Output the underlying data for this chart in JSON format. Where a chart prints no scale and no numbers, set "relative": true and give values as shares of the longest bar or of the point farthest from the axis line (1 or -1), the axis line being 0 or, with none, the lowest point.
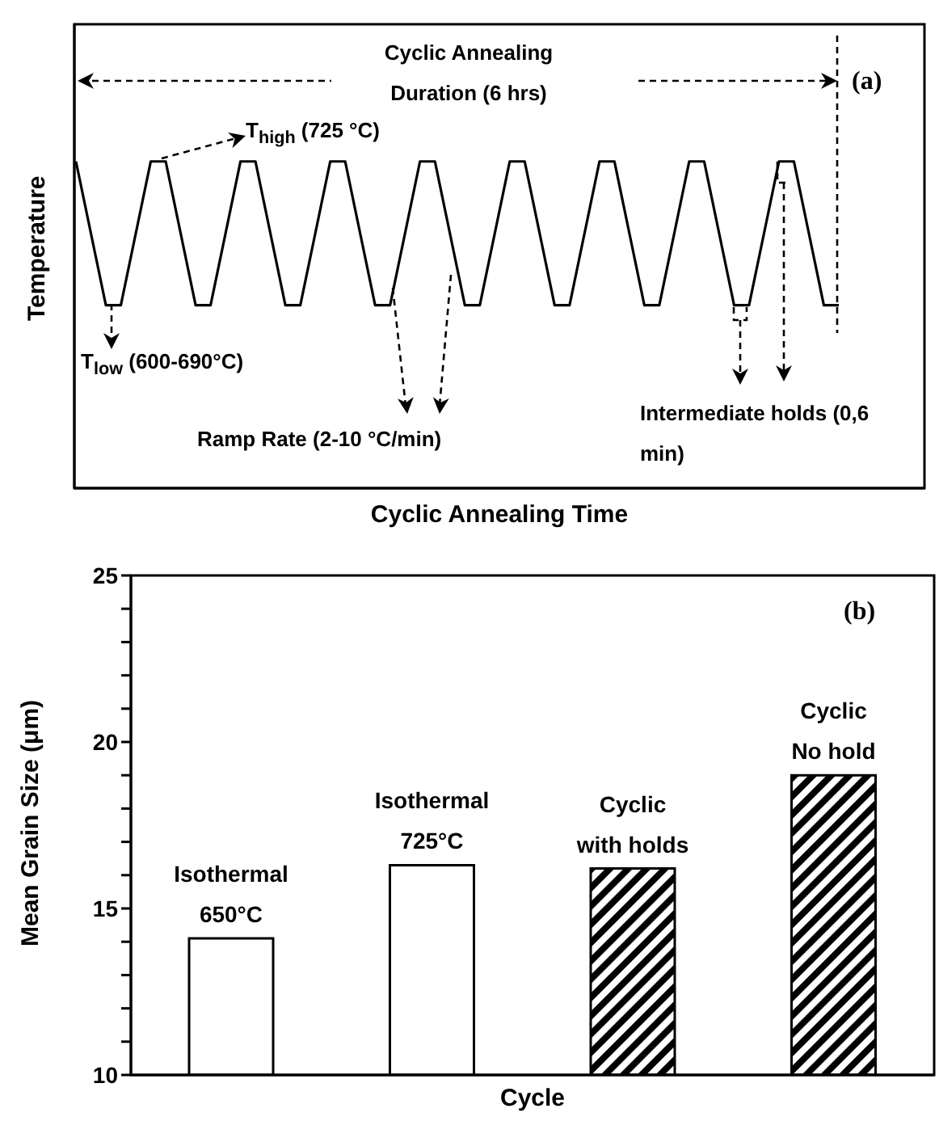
{
  "chart_data": [
    {
      "type": "line",
      "relative": true,
      "ylabel": "Temperature",
      "xlabel": "Cyclic Annealing Time",
      "color": "#000000",
      "categories": [
        null,
        null,
        null,
        null,
        null,
        null,
        null,
        null,
        null,
        null,
        null,
        null,
        null,
        null,
        null,
        null,
        null,
        null,
        null,
        null,
        null,
        null,
        null,
        null,
        null,
        null,
        null,
        null,
        null,
        null,
        null,
        null,
        null,
        null,
        null,
        null,
        null,
        null,
        null,
        null,
        null,
        null,
        null,
        null,
        null,
        null,
        null,
        null,
        null,
        null,
        null,
        null
      ],
      "values": [
        1,
        0.78,
        0.56,
        0.56,
        0.78,
        1,
        1,
        0.78,
        0.56,
        0.56,
        0.78,
        1,
        1,
        0.78,
        0.56,
        0.56,
        0.78,
        1,
        1,
        0.78,
        0.56,
        0.56,
        0.78,
        1,
        1,
        0.78,
        0.56,
        0.56,
        0.78,
        1,
        1,
        0.78,
        0.56,
        0.56,
        0.78,
        1,
        1,
        0.78,
        0.56,
        0.56,
        0.78,
        1,
        1,
        0.78,
        0.56,
        0.56,
        0.78,
        1,
        1,
        0.78,
        0.56,
        0.56
      ],
      "annotations": [
        "Cyclic Annealing Duration (6 hrs)",
        "T$_{high}$ (725 °C)",
        "T$_{low}$ (600-690°C)",
        "Ramp Rate (2-10 °C/min)",
        "Intermediate holds (0,6 min)",
        "(a)"
      ]
    },
    {
      "type": "bar",
      "ylabel": "Mean Grain Size (μm)",
      "xlabel": "Cycle",
      "categories": [
        "Isothermal 650°C",
        "Isothermal 725°C",
        "Cyclic with holds",
        "Cyclic No hold"
      ],
      "values": [
        14.1,
        16.3,
        16.2,
        19.0
      ],
      "colors": [
        "#ffffff",
        "#ffffff",
        "#000000",
        "#000000"
      ],
      "ylim": [
        10,
        25
      ],
      "yticks": [
        10,
        {
          "value": 11,
          "label": null
        },
        {
          "value": 12,
          "label": null
        },
        {
          "value": 13,
          "label": null
        },
        {
          "value": 14,
          "label": null
        },
        15,
        {
          "value": 16,
          "label": null
        },
        {
          "value": 17,
          "label": null
        },
        {
          "value": 18,
          "label": null
        },
        {
          "value": 19,
          "label": null
        },
        20,
        {
          "value": 21,
          "label": null
        },
        {
          "value": 22,
          "label": null
        },
        {
          "value": 23,
          "label": null
        },
        {
          "value": 24,
          "label": null
        },
        25
      ],
      "annotations": [
        "(b)"
      ]
    }
  ]
}
